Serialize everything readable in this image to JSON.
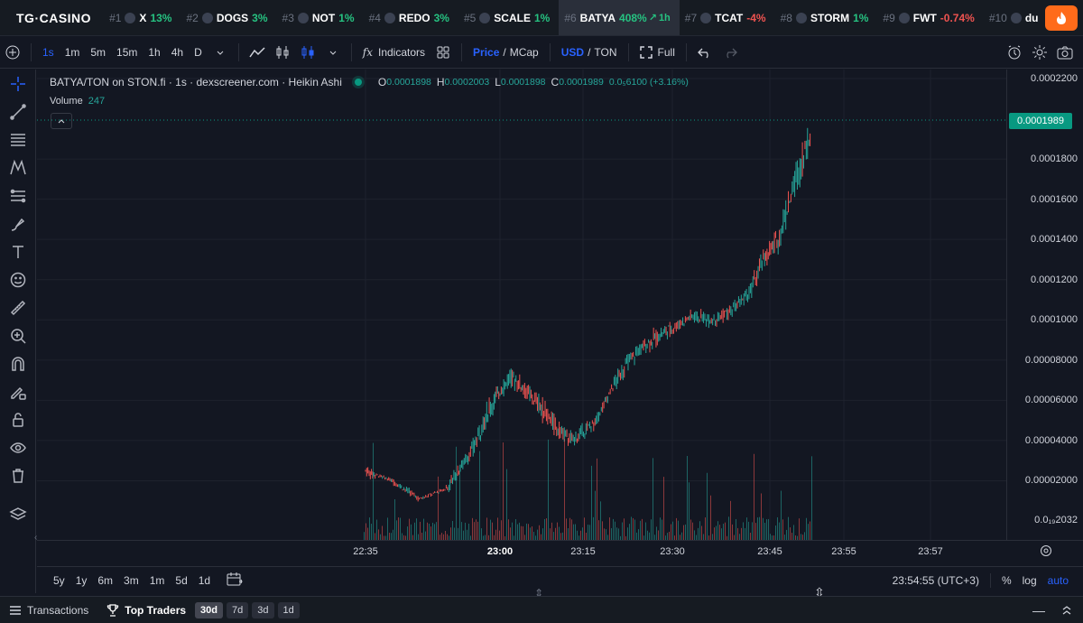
{
  "ticker": {
    "logo": "TG·CASINO",
    "items": [
      {
        "rank": "#1",
        "symbol": "X",
        "change": "13%",
        "dir": "up",
        "icon": "x-icon",
        "active": false
      },
      {
        "rank": "#2",
        "symbol": "DOGS",
        "change": "3%",
        "dir": "up",
        "icon": "dog-icon",
        "active": false
      },
      {
        "rank": "#3",
        "symbol": "NOT",
        "change": "1%",
        "dir": "up",
        "icon": "triangle-icon",
        "active": false
      },
      {
        "rank": "#4",
        "symbol": "REDO",
        "change": "3%",
        "dir": "up",
        "icon": "redo-icon",
        "active": false
      },
      {
        "rank": "#5",
        "symbol": "SCALE",
        "change": "1%",
        "dir": "up",
        "icon": "scale-icon",
        "active": false
      },
      {
        "rank": "#6",
        "symbol": "BATYA",
        "change": "408%",
        "dir": "up",
        "icon": "",
        "active": true,
        "extra": "1h"
      },
      {
        "rank": "#7",
        "symbol": "TCAT",
        "change": "-4%",
        "dir": "down",
        "icon": "cat-icon",
        "active": false
      },
      {
        "rank": "#8",
        "symbol": "STORM",
        "change": "1%",
        "dir": "up",
        "icon": "storm-icon",
        "active": false
      },
      {
        "rank": "#9",
        "symbol": "FWT",
        "change": "-0.74%",
        "dir": "down",
        "icon": "coin-icon",
        "active": false
      },
      {
        "rank": "#10",
        "symbol": "du",
        "change": "",
        "dir": "up",
        "icon": "du-icon",
        "active": false
      }
    ]
  },
  "toolbar": {
    "intervals": [
      "1s",
      "1m",
      "5m",
      "15m",
      "1h",
      "4h",
      "D"
    ],
    "selected_interval": "1s",
    "indicators_label": "Indicators",
    "price_label": "Price",
    "mcap_label": "MCap",
    "usd_label": "USD",
    "ton_label": "TON",
    "full_label": "Full",
    "slash": "/"
  },
  "legend": {
    "title": "BATYA/TON on STON.fi · 1s · dexscreener.com · Heikin Ashi",
    "o_key": "O",
    "o_val": "0.0001898",
    "h_key": "H",
    "h_val": "0.0002003",
    "l_key": "L",
    "l_val": "0.0001898",
    "c_key": "C",
    "c_val": "0.0001989",
    "change": "0.0₅6100 (+3.16%)",
    "volume_label": "Volume",
    "volume_value": "247"
  },
  "price_axis": {
    "last_price": "0.0001989",
    "labels": [
      "0.0002200",
      "0.0001800",
      "0.0001600",
      "0.0001400",
      "0.0001200",
      "0.0001000",
      "0.00008000",
      "0.00006000",
      "0.00004000",
      "0.00002000",
      "0.0₁₉2032"
    ]
  },
  "time_axis": {
    "labels": [
      "22:35",
      "23:00",
      "23:15",
      "23:30",
      "23:45",
      "23:55",
      "23:57"
    ],
    "bold": [
      "23:00"
    ]
  },
  "range_bar": {
    "ranges": [
      "5y",
      "1y",
      "6m",
      "3m",
      "1m",
      "5d",
      "1d"
    ],
    "clock": "23:54:55 (UTC+3)",
    "percent": "%",
    "log": "log",
    "auto": "auto"
  },
  "bottom": {
    "transactions": "Transactions",
    "top_traders": "Top Traders",
    "periods": [
      "30d",
      "7d",
      "3d",
      "1d"
    ],
    "selected_period": "30d"
  },
  "colors": {
    "up": "#26a69a",
    "down": "#ef5350",
    "accent": "#2962ff",
    "last_price_bg": "#089981",
    "fire": "#ff6b1a"
  },
  "chart_data": {
    "type": "candlestick",
    "title": "BATYA/TON on STON.fi · 1s · dexscreener.com · Heikin Ashi",
    "ylim": [
      0,
      0.00022
    ],
    "xlim": [
      "22:27",
      "23:59"
    ],
    "price_path": [
      [
        "22:35",
        2.8e-05,
        2.2e-05,
        "down"
      ],
      [
        "22:37",
        2.4e-05,
        2.2e-05,
        "down"
      ],
      [
        "22:40",
        2.2e-05,
        1.8e-05,
        "down"
      ],
      [
        "22:45",
        1.2e-05,
        1e-05,
        "down"
      ],
      [
        "22:50",
        2e-05,
        1.2e-05,
        "up"
      ],
      [
        "22:55",
        4.2e-05,
        3e-05,
        "up"
      ],
      [
        "22:58",
        6.2e-05,
        5e-05,
        "up"
      ],
      [
        "23:00",
        7e-05,
        6e-05,
        "up"
      ],
      [
        "23:02",
        7.8e-05,
        6.6e-05,
        "down"
      ],
      [
        "23:04",
        7.2e-05,
        6.2e-05,
        "down"
      ],
      [
        "23:07",
        6.4e-05,
        5.2e-05,
        "down"
      ],
      [
        "23:10",
        5.2e-05,
        4.2e-05,
        "down"
      ],
      [
        "23:13",
        4.4e-05,
        3.6e-05,
        "up"
      ],
      [
        "23:17",
        5.2e-05,
        4.6e-05,
        "up"
      ],
      [
        "23:20",
        7.2e-05,
        6.2e-05,
        "up"
      ],
      [
        "23:23",
        8.6e-05,
        7.6e-05,
        "up"
      ],
      [
        "23:26",
        9.4e-05,
        8.4e-05,
        "up"
      ],
      [
        "23:30",
        0.0001,
        9.2e-05,
        "down"
      ],
      [
        "23:33",
        0.000106,
        9.8e-05,
        "up"
      ],
      [
        "23:36",
        0.000104,
        9.6e-05,
        "down"
      ],
      [
        "23:39",
        0.000108,
        0.0001,
        "up"
      ],
      [
        "23:42",
        0.00012,
        0.000108,
        "up"
      ],
      [
        "23:44",
        0.000136,
        0.000124,
        "down"
      ],
      [
        "23:46",
        0.000148,
        0.000132,
        "up"
      ],
      [
        "23:48",
        0.000178,
        0.000158,
        "up"
      ],
      [
        "23:50",
        0.0002,
        0.000186,
        "up"
      ]
    ]
  }
}
